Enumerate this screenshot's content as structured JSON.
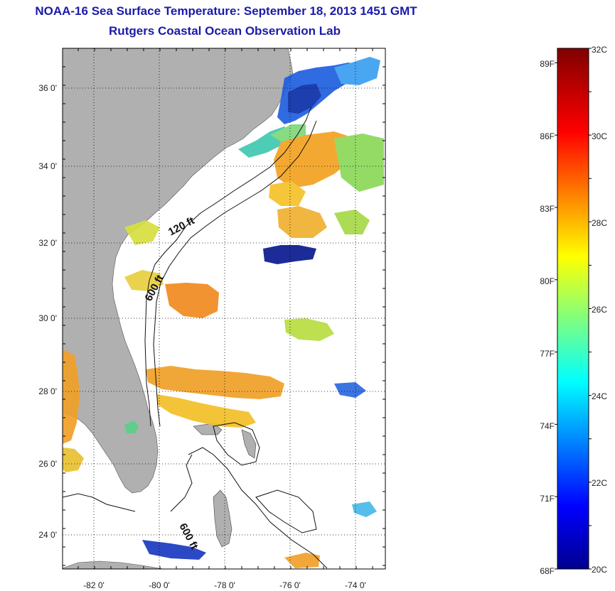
{
  "title": {
    "line1": "NOAA-16 Sea Surface Temperature:  September 18, 2013 1451 GMT",
    "line2": "Rutgers Coastal Ocean Observation Lab"
  },
  "map": {
    "lon_ticks": [
      "-82 0'",
      "-80 0'",
      "-78 0'",
      "-76 0'",
      "-74 0'"
    ],
    "lat_ticks": [
      "36 0'",
      "34 0'",
      "32 0'",
      "30 0'",
      "28 0'",
      "26 0'",
      "24 0'"
    ],
    "isobath_labels": [
      "120 ft",
      "600 ft",
      "600 ft"
    ],
    "land_color": "#b0b0b0",
    "grid": "dotted"
  },
  "colorbar": {
    "fahrenheit_labels": [
      "89F",
      "86F",
      "83F",
      "80F",
      "77F",
      "74F",
      "71F",
      "68F"
    ],
    "celsius_labels": [
      "32C",
      "30C",
      "28C",
      "26C",
      "24C",
      "22C",
      "20C"
    ],
    "range_c": [
      20,
      32
    ],
    "colormap": "jet"
  }
}
